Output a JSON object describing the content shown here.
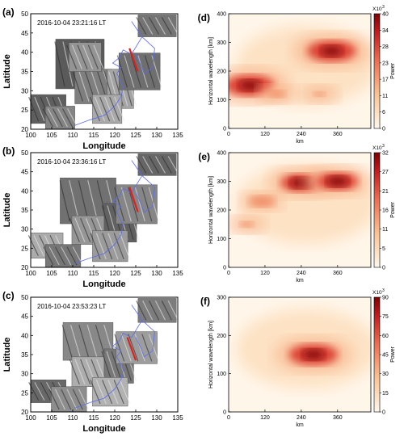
{
  "chart_data": [
    {
      "type": "heatmap",
      "kind": "map",
      "panel_label": "(a)",
      "timestamp": "2016-10-04 23:21:16 LT",
      "xlabel": "Longitude",
      "ylabel": "Latitude",
      "xlim": [
        100,
        135
      ],
      "ylim": [
        20,
        50
      ],
      "xticks": [
        "100",
        "105",
        "110",
        "115",
        "120",
        "125",
        "130",
        "135"
      ],
      "yticks": [
        "20",
        "25",
        "30",
        "35",
        "40",
        "45",
        "50"
      ],
      "red_line": {
        "lon": [
          123.5,
          125.5
        ],
        "lat": [
          41.0,
          35.0
        ]
      }
    },
    {
      "type": "heatmap",
      "kind": "map",
      "panel_label": "(b)",
      "timestamp": "2016-10-04 23:36:16 LT",
      "xlabel": "Longitude",
      "ylabel": "Latitude",
      "xlim": [
        100,
        135
      ],
      "ylim": [
        20,
        50
      ],
      "xticks": [
        "100",
        "105",
        "110",
        "115",
        "120",
        "125",
        "130",
        "135"
      ],
      "yticks": [
        "20",
        "25",
        "30",
        "35",
        "40",
        "45",
        "50"
      ],
      "red_line": {
        "lon": [
          123.5,
          125.5
        ],
        "lat": [
          41.0,
          34.5
        ]
      }
    },
    {
      "type": "heatmap",
      "kind": "map",
      "panel_label": "(c)",
      "timestamp": "2016-10-04 23:53:23 LT",
      "xlabel": "Longitude",
      "ylabel": "Latitude",
      "xlim": [
        100,
        135
      ],
      "ylim": [
        20,
        50
      ],
      "xticks": [
        "100",
        "105",
        "110",
        "115",
        "120",
        "125",
        "130",
        "135"
      ],
      "yticks": [
        "20",
        "25",
        "30",
        "35",
        "40",
        "45",
        "50"
      ],
      "red_line": {
        "lon": [
          123.0,
          125.0
        ],
        "lat": [
          39.5,
          33.5
        ]
      }
    },
    {
      "type": "heatmap",
      "kind": "spectrum",
      "panel_label": "(d)",
      "xlabel": "km",
      "ylabel": "Horizontal wavelength [km]",
      "xlim": [
        0,
        470
      ],
      "ylim": [
        0,
        400
      ],
      "xticks": [
        "0",
        "120",
        "240",
        "360"
      ],
      "yticks": [
        "0",
        "100",
        "200",
        "300",
        "400"
      ],
      "colorbar": {
        "label": "Power",
        "multiplier": "X10",
        "exponent": "3",
        "ticks": [
          "0",
          "6",
          "11",
          "17",
          "23",
          "28",
          "34",
          "40"
        ]
      },
      "peaks": [
        {
          "x": 340,
          "y": 270,
          "power": 1.0
        },
        {
          "x": 70,
          "y": 150,
          "power": 1.0
        },
        {
          "x": 160,
          "y": 120,
          "power": 0.35
        },
        {
          "x": 300,
          "y": 120,
          "power": 0.25
        }
      ]
    },
    {
      "type": "heatmap",
      "kind": "spectrum",
      "panel_label": "(e)",
      "xlabel": "km",
      "ylabel": "Horizontal wavelength [km]",
      "xlim": [
        0,
        470
      ],
      "ylim": [
        0,
        400
      ],
      "xticks": [
        "0",
        "120",
        "240",
        "360"
      ],
      "yticks": [
        "0",
        "100",
        "200",
        "300",
        "400"
      ],
      "colorbar": {
        "label": "Power",
        "multiplier": "X10",
        "exponent": "3",
        "ticks": [
          "0",
          "5",
          "11",
          "16",
          "21",
          "27",
          "32"
        ]
      },
      "peaks": [
        {
          "x": 240,
          "y": 295,
          "power": 0.85
        },
        {
          "x": 360,
          "y": 300,
          "power": 0.85
        },
        {
          "x": 110,
          "y": 230,
          "power": 0.55
        },
        {
          "x": 60,
          "y": 150,
          "power": 0.3
        }
      ]
    },
    {
      "type": "heatmap",
      "kind": "spectrum",
      "panel_label": "(f)",
      "xlabel": "km",
      "ylabel": "Horizontal wavelength [km]",
      "xlim": [
        0,
        470
      ],
      "ylim": [
        0,
        300
      ],
      "xticks": [
        "0",
        "120",
        "240",
        "360"
      ],
      "yticks": [
        "0",
        "100",
        "200",
        "300"
      ],
      "colorbar": {
        "label": "Power",
        "multiplier": "X10",
        "exponent": "3",
        "ticks": [
          "0",
          "15",
          "30",
          "45",
          "60",
          "75",
          "90"
        ]
      },
      "peaks": [
        {
          "x": 280,
          "y": 150,
          "power": 1.0
        }
      ]
    }
  ]
}
